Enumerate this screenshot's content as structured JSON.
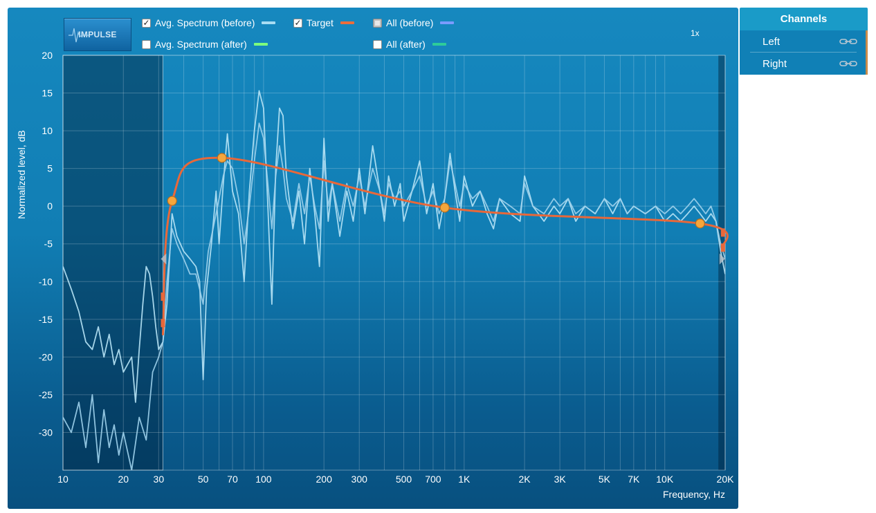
{
  "toolbar": {
    "impulse_label": "IMPULSE",
    "legend": [
      {
        "label": "Avg. Spectrum (before)",
        "checked": true,
        "color": "#a8dcf2"
      },
      {
        "label": "Avg. Spectrum (after)",
        "checked": false,
        "color": "#7dff7d"
      },
      {
        "label": "Target",
        "checked": true,
        "color": "#ec6d3b"
      },
      {
        "label": "All (before)",
        "checked": false,
        "partial": true,
        "color": "#7b9bff"
      },
      {
        "label": "All (after)",
        "checked": false,
        "color": "#2ecc9a"
      }
    ],
    "zoom": "1x"
  },
  "channels": {
    "title": "Channels",
    "items": [
      {
        "label": "Left",
        "icon": "link-icon"
      },
      {
        "label": "Right",
        "icon": "link-icon"
      }
    ]
  },
  "chart_data": {
    "type": "line",
    "xscale": "log",
    "xlim": [
      10,
      20000
    ],
    "ylim": [
      -35,
      20
    ],
    "xlabel": "Frequency, Hz",
    "ylabel": "Normalized level, dB",
    "xticks": [
      {
        "v": 10,
        "label": "10"
      },
      {
        "v": 20,
        "label": "20"
      },
      {
        "v": 30,
        "label": "30"
      },
      {
        "v": 50,
        "label": "50"
      },
      {
        "v": 70,
        "label": "70"
      },
      {
        "v": 100,
        "label": "100"
      },
      {
        "v": 200,
        "label": "200"
      },
      {
        "v": 300,
        "label": "300"
      },
      {
        "v": 500,
        "label": "500"
      },
      {
        "v": 700,
        "label": "700"
      },
      {
        "v": 1000,
        "label": "1K"
      },
      {
        "v": 2000,
        "label": "2K"
      },
      {
        "v": 3000,
        "label": "3K"
      },
      {
        "v": 5000,
        "label": "5K"
      },
      {
        "v": 7000,
        "label": "7K"
      },
      {
        "v": 10000,
        "label": "10K"
      },
      {
        "v": 20000,
        "label": "20K"
      }
    ],
    "yticks": [
      {
        "v": 20,
        "label": "20"
      },
      {
        "v": 15,
        "label": "15"
      },
      {
        "v": 10,
        "label": "10"
      },
      {
        "v": 5,
        "label": "5"
      },
      {
        "v": 0,
        "label": "0"
      },
      {
        "v": -5,
        "label": "-5"
      },
      {
        "v": -10,
        "label": "-10"
      },
      {
        "v": -15,
        "label": "-15"
      },
      {
        "v": -20,
        "label": "-20"
      },
      {
        "v": -25,
        "label": "-25"
      },
      {
        "v": -30,
        "label": "-30"
      }
    ],
    "excluded_range_hz": [
      10,
      31.5
    ],
    "upper_excluded_range_hz": [
      18500,
      20000
    ],
    "target_points": [
      [
        35,
        0.7
      ],
      [
        62,
        6.4
      ],
      [
        800,
        -0.2
      ],
      [
        15000,
        -2.3
      ]
    ],
    "series": [
      {
        "color": "#b8e4f6",
        "points": [
          [
            10,
            -8
          ],
          [
            11,
            -11
          ],
          [
            12,
            -14
          ],
          [
            13,
            -18
          ],
          [
            14,
            -19
          ],
          [
            15,
            -16
          ],
          [
            16,
            -20
          ],
          [
            17,
            -17
          ],
          [
            18,
            -21
          ],
          [
            19,
            -19
          ],
          [
            20,
            -22
          ],
          [
            22,
            -20
          ],
          [
            23,
            -26
          ],
          [
            24,
            -19
          ],
          [
            25,
            -13
          ],
          [
            26,
            -8
          ],
          [
            27,
            -9
          ],
          [
            28,
            -12
          ],
          [
            29,
            -16
          ],
          [
            30,
            -19
          ],
          [
            31.5,
            -18
          ],
          [
            33,
            -13
          ],
          [
            35,
            -1
          ],
          [
            37,
            -4
          ],
          [
            40,
            -6
          ],
          [
            43,
            -7
          ],
          [
            46,
            -8
          ],
          [
            48,
            -10
          ],
          [
            50,
            -23
          ],
          [
            52,
            -11
          ],
          [
            55,
            -5
          ],
          [
            58,
            2
          ],
          [
            60,
            -5
          ],
          [
            63,
            3
          ],
          [
            66,
            9.6
          ],
          [
            70,
            2
          ],
          [
            75,
            -1
          ],
          [
            80,
            -10
          ],
          [
            85,
            2
          ],
          [
            90,
            10
          ],
          [
            95,
            15.3
          ],
          [
            100,
            13
          ],
          [
            105,
            0
          ],
          [
            110,
            -13
          ],
          [
            115,
            5
          ],
          [
            120,
            13
          ],
          [
            125,
            12
          ],
          [
            130,
            4
          ],
          [
            140,
            -3
          ],
          [
            150,
            2
          ],
          [
            160,
            -5
          ],
          [
            170,
            5
          ],
          [
            180,
            -1
          ],
          [
            190,
            -8
          ],
          [
            200,
            9
          ],
          [
            210,
            -2
          ],
          [
            220,
            3
          ],
          [
            240,
            -4
          ],
          [
            260,
            2
          ],
          [
            280,
            -2
          ],
          [
            300,
            5
          ],
          [
            320,
            -1
          ],
          [
            350,
            8
          ],
          [
            380,
            2
          ],
          [
            400,
            -2
          ],
          [
            420,
            4
          ],
          [
            450,
            0
          ],
          [
            480,
            3
          ],
          [
            500,
            -2
          ],
          [
            550,
            2
          ],
          [
            600,
            6
          ],
          [
            650,
            -1
          ],
          [
            700,
            3
          ],
          [
            750,
            -3
          ],
          [
            800,
            1
          ],
          [
            850,
            7
          ],
          [
            900,
            2
          ],
          [
            950,
            -2
          ],
          [
            1000,
            4
          ],
          [
            1100,
            0
          ],
          [
            1200,
            2
          ],
          [
            1300,
            -1
          ],
          [
            1400,
            -3
          ],
          [
            1500,
            1
          ],
          [
            1700,
            -1
          ],
          [
            1900,
            -2
          ],
          [
            2000,
            4
          ],
          [
            2200,
            0
          ],
          [
            2500,
            -2
          ],
          [
            2800,
            0
          ],
          [
            3000,
            -1
          ],
          [
            3300,
            1
          ],
          [
            3600,
            -2
          ],
          [
            4000,
            0
          ],
          [
            4500,
            -1
          ],
          [
            5000,
            1
          ],
          [
            5500,
            -1
          ],
          [
            6000,
            1
          ],
          [
            6500,
            -1
          ],
          [
            7000,
            0
          ],
          [
            8000,
            -1
          ],
          [
            9000,
            0
          ],
          [
            10000,
            -2
          ],
          [
            11000,
            -1
          ],
          [
            12000,
            -2
          ],
          [
            13000,
            -1
          ],
          [
            14000,
            0
          ],
          [
            15000,
            -1
          ],
          [
            16000,
            -2
          ],
          [
            17000,
            -1
          ],
          [
            18000,
            -2
          ],
          [
            19000,
            -6
          ],
          [
            20000,
            -9
          ]
        ]
      },
      {
        "color": "#9fd2ec",
        "points": [
          [
            10,
            -28
          ],
          [
            11,
            -30
          ],
          [
            12,
            -26
          ],
          [
            13,
            -32
          ],
          [
            14,
            -25
          ],
          [
            15,
            -34
          ],
          [
            16,
            -27
          ],
          [
            17,
            -32
          ],
          [
            18,
            -29
          ],
          [
            19,
            -33
          ],
          [
            20,
            -30
          ],
          [
            22,
            -35
          ],
          [
            24,
            -28
          ],
          [
            26,
            -31
          ],
          [
            28,
            -22
          ],
          [
            30,
            -20
          ],
          [
            31.5,
            -18
          ],
          [
            33,
            -10
          ],
          [
            35,
            -3
          ],
          [
            37,
            -5
          ],
          [
            40,
            -7
          ],
          [
            43,
            -9
          ],
          [
            46,
            -9
          ],
          [
            48,
            -11
          ],
          [
            50,
            -13
          ],
          [
            53,
            -6
          ],
          [
            56,
            -3
          ],
          [
            60,
            1
          ],
          [
            63,
            4
          ],
          [
            66,
            6
          ],
          [
            70,
            5
          ],
          [
            75,
            1
          ],
          [
            80,
            -5
          ],
          [
            85,
            0
          ],
          [
            90,
            6
          ],
          [
            95,
            11
          ],
          [
            100,
            9
          ],
          [
            105,
            3
          ],
          [
            110,
            -3
          ],
          [
            115,
            4
          ],
          [
            120,
            8
          ],
          [
            125,
            5
          ],
          [
            130,
            1
          ],
          [
            140,
            -2
          ],
          [
            150,
            3
          ],
          [
            160,
            -1
          ],
          [
            170,
            4
          ],
          [
            180,
            0
          ],
          [
            190,
            -3
          ],
          [
            200,
            6
          ],
          [
            210,
            0
          ],
          [
            220,
            3
          ],
          [
            240,
            -2
          ],
          [
            260,
            3
          ],
          [
            280,
            0
          ],
          [
            300,
            4
          ],
          [
            320,
            0
          ],
          [
            350,
            5
          ],
          [
            380,
            2
          ],
          [
            400,
            -1
          ],
          [
            420,
            3
          ],
          [
            450,
            1
          ],
          [
            480,
            2
          ],
          [
            500,
            0
          ],
          [
            550,
            2
          ],
          [
            600,
            4
          ],
          [
            650,
            0
          ],
          [
            700,
            2
          ],
          [
            750,
            -1
          ],
          [
            800,
            1
          ],
          [
            850,
            6
          ],
          [
            900,
            3
          ],
          [
            950,
            0
          ],
          [
            1000,
            3
          ],
          [
            1100,
            1
          ],
          [
            1200,
            2
          ],
          [
            1300,
            0
          ],
          [
            1400,
            -2
          ],
          [
            1500,
            1
          ],
          [
            1700,
            0
          ],
          [
            1900,
            -1
          ],
          [
            2000,
            3
          ],
          [
            2200,
            0
          ],
          [
            2500,
            -1
          ],
          [
            2800,
            1
          ],
          [
            3000,
            0
          ],
          [
            3300,
            1
          ],
          [
            3600,
            -1
          ],
          [
            4000,
            0
          ],
          [
            4500,
            -1
          ],
          [
            5000,
            1
          ],
          [
            5500,
            0
          ],
          [
            6000,
            1
          ],
          [
            6500,
            -1
          ],
          [
            7000,
            0
          ],
          [
            8000,
            -1
          ],
          [
            9000,
            0
          ],
          [
            10000,
            -1
          ],
          [
            11000,
            0
          ],
          [
            12000,
            -1
          ],
          [
            13000,
            0
          ],
          [
            14000,
            1
          ],
          [
            15000,
            0
          ],
          [
            16000,
            -1
          ],
          [
            17000,
            0
          ],
          [
            18000,
            -2
          ],
          [
            19000,
            -5
          ],
          [
            20000,
            -7
          ]
        ]
      }
    ]
  }
}
